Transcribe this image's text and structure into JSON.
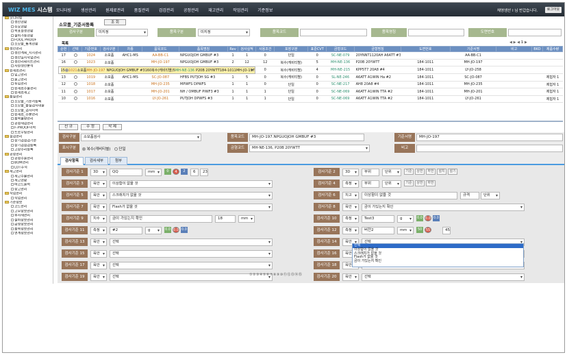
{
  "app": {
    "logo_main": "WIZ MES",
    "logo_sub": "시스템"
  },
  "menu": [
    "모니터링",
    "생산관리",
    "원제료관리",
    "품질관리",
    "검검관리",
    "공정관리",
    "재고관리",
    "작업관리",
    "기준정보"
  ],
  "user": {
    "info": "채영생산 I 님 반갑습니다.",
    "logout": "로그아웃"
  },
  "sidebar": [
    {
      "label": "모니터링",
      "level": 0
    },
    {
      "label": "생산현황",
      "level": 1
    },
    {
      "label": "주요현황",
      "level": 1
    },
    {
      "label": "목표월생현황",
      "level": 1
    },
    {
      "label": "설비가동현황",
      "level": 1
    },
    {
      "label": "FOOL PROOF",
      "level": 1
    },
    {
      "label": "소모품_통계현황",
      "level": 1
    },
    {
      "label": "생산관리",
      "level": 0
    },
    {
      "label": "생산계획_지시관리",
      "level": 1
    },
    {
      "label": "생산일지작업관리",
      "level": 1
    },
    {
      "label": "생산리테이트관리",
      "level": 1
    },
    {
      "label": "자원생산분석",
      "level": 1
    },
    {
      "label": "원재료관리",
      "level": 0
    },
    {
      "label": "입고관리",
      "level": 1
    },
    {
      "label": "출고관리",
      "level": 1
    },
    {
      "label": "투입관리",
      "level": 1
    },
    {
      "label": "원재료수불관리",
      "level": 1
    },
    {
      "label": "원재료재고",
      "level": 1
    },
    {
      "label": "품질관리",
      "level": 0
    },
    {
      "label": "소모품_기준서등록",
      "level": 1
    },
    {
      "label": "소모품_품질검사대출",
      "level": 1
    },
    {
      "label": "소모품_검사이력",
      "level": 1
    },
    {
      "label": "원재료_수분관리",
      "level": 1
    },
    {
      "label": "품목불량관리",
      "level": 1
    },
    {
      "label": "공정재검관리",
      "level": 1
    },
    {
      "label": "F-PROOF이력",
      "level": 1
    },
    {
      "label": "트로우팅관리",
      "level": 1
    },
    {
      "label": "점검관리",
      "level": 0
    },
    {
      "label": "장기검점검기준",
      "level": 1
    },
    {
      "label": "장기검점검등록",
      "level": 1
    },
    {
      "label": "고장수리등록",
      "level": 1
    },
    {
      "label": "공정관리",
      "level": 0
    },
    {
      "label": "공정수출관리",
      "level": 1
    },
    {
      "label": "BOM관리",
      "level": 1
    },
    {
      "label": "LOT추적",
      "level": 1
    },
    {
      "label": "재고관리",
      "level": 0
    },
    {
      "label": "재고수불관리",
      "level": 1
    },
    {
      "label": "재고현황",
      "level": 1
    },
    {
      "label": "바코드출력",
      "level": 1
    },
    {
      "label": "창고관리",
      "level": 1
    },
    {
      "label": "작업관리",
      "level": 0
    },
    {
      "label": "작업관리",
      "level": 1
    },
    {
      "label": "기준정보",
      "level": 0
    },
    {
      "label": "코드관리",
      "level": 1
    },
    {
      "label": "고무장보관리",
      "level": 1
    },
    {
      "label": "부자재관리",
      "level": 1
    },
    {
      "label": "설비장보관리",
      "level": 1
    },
    {
      "label": "금형장보관리",
      "level": 1
    },
    {
      "label": "품목정보관리",
      "level": 1
    },
    {
      "label": "연계정보관리",
      "level": 1
    }
  ],
  "page": {
    "title": "소모품_기준서등록",
    "query_button": "조 회"
  },
  "filters": {
    "inspect_type_label": "검사구분",
    "inspect_type_value": "미지정",
    "item_type_label": "품목구분",
    "item_type_value": "미지정",
    "item_code_label": "품목코드",
    "item_code_value": "",
    "item_name_label": "품목명칭",
    "item_name_value": "",
    "drawing_label": "도면번호",
    "drawing_value": ""
  },
  "grid": {
    "title": "목록",
    "nav": "◀ ▶ ◀ 1 ▶",
    "columns": [
      "순번",
      "선택",
      "기준번호",
      "검사구분",
      "차종",
      "품목코드",
      "품목명칭",
      "Rev",
      "검사실적",
      "사용조건",
      "포장구분",
      "표준CVT",
      "금형코드",
      "금형명칭",
      "도면번호",
      "기준서명",
      "비고",
      "BKO",
      "제품수량"
    ],
    "rows": [
      [
        "17",
        "",
        "1024",
        "소모품",
        "AHC1-MS",
        "AA-BB-C1",
        "NPGUOJOH GMBUF #3",
        "1",
        "1",
        "0",
        "단일",
        "0",
        "SC-NE-079",
        "20YNNT1120AH A6ATT #3",
        "",
        "AA-BB-C1",
        "",
        "",
        ""
      ],
      [
        "16",
        "",
        "1023",
        "소모품",
        "",
        "MH-JO-197",
        "NPGUOJOH GMBUF #3",
        "2",
        "12",
        "12",
        "복수(캐비티별)",
        "5",
        "MH-NE-136",
        "P20B 20YWTT",
        "184-1011",
        "MH-JO-197",
        "",
        "",
        ""
      ],
      [
        "15",
        "on",
        "1021",
        "소모품",
        "",
        "MH-JO-197",
        "NPGUOJOH GMBUF #3",
        "1",
        "6",
        "0",
        "복수(캐비티별)",
        "5",
        "MH-NE-136",
        "P20B 20YWTT",
        "184-1011",
        "MH-JO-197",
        "",
        "",
        ""
      ],
      [
        "14",
        "",
        "1020",
        "소모품",
        "",
        "LY-JO-258",
        "TUPGOF3(E)#4",
        "1",
        "1",
        "0",
        "복수(캐비티별)",
        "4",
        "MH-NE-215",
        "KPP5T7 20A8 #4",
        "184-1011",
        "LY-JO-258",
        "",
        "",
        ""
      ],
      [
        "13",
        "",
        "1019",
        "소모품",
        "AHC1-MS",
        "SC-JO-087",
        "HFBS PUTJOH SG #3",
        "1",
        "5",
        "0",
        "복수(캐비티별)",
        "0",
        "SL-NE-246",
        "A6ATT A1WIN Ha #2",
        "184-1011",
        "SC-JO-087",
        "",
        "",
        "제험자 1"
      ],
      [
        "12",
        "",
        "1018",
        "소모품",
        "",
        "MH-JO-235",
        "MPWFS DPWFS",
        "1",
        "1",
        "0",
        "단일",
        "0",
        "SC-NE-217",
        "AH8 20A8 #4",
        "184-1011",
        "MH-JO-235",
        "",
        "",
        "제험자 1"
      ],
      [
        "11",
        "",
        "1017",
        "소모품",
        "",
        "MH-JO-201",
        "NH / OMBUF PIWF3 #3",
        "1",
        "1",
        "1",
        "단일",
        "0",
        "SC-NE-069",
        "A6ATT A1WIN TTA #2",
        "184-1011",
        "MH-JO-201",
        "",
        "",
        "제험자 1"
      ],
      [
        "10",
        "",
        "1016",
        "소모품",
        "",
        "LY-JO-261",
        "PUTJOH DPWFS #3",
        "1",
        "1",
        "1",
        "단일",
        "0",
        "SC-NE-069",
        "A6ATT A1WIN TTA #2",
        "184-1011",
        "LY-JO-261",
        "",
        "",
        "제험자 1"
      ]
    ]
  },
  "actions": {
    "new": "신 규",
    "edit": "수 정",
    "delete": "삭 제"
  },
  "form": {
    "inspect_type_label": "검사구분",
    "inspect_type_value": "소모품검사",
    "item_code_label": "품목코드",
    "item_code_value": "MH-JO-197.NPGUOJOH GMBUF #3",
    "std_name_label": "기준서명",
    "std_name_value": "MH-JO-197",
    "display_label": "표시구분",
    "radio1": "복수(캐비티별)",
    "radio2": "단일",
    "mold_label": "금형코드",
    "mold_value": "MH-NE-136, P20B 20YWTT",
    "note_label": "비고",
    "note_value": ""
  },
  "tabs": [
    "검사항목",
    "검사세부",
    "첨부"
  ],
  "inspect_left": [
    {
      "label": "검사기준 1",
      "type": "3D",
      "text": "QQ",
      "unit": "mm",
      "chips": [
        [
          "gr",
          "0"
        ],
        [
          "rd",
          "4"
        ],
        [
          "bl",
          "2"
        ]
      ],
      "vals": [
        "6",
        "23"
      ]
    },
    {
      "label": "검사기준 3",
      "type": "육안",
      "text": "이상함이 없을 것"
    },
    {
      "label": "검사기준 5",
      "type": "육안",
      "text": "스크래치가 없을 것"
    },
    {
      "label": "검사기준 7",
      "type": "육안",
      "text": "Flash가 없을 것"
    },
    {
      "label": "검사기준 9",
      "type": "치수",
      "text": "금이 가있는지 확인",
      "value": "18",
      "unit": "mm"
    },
    {
      "label": "검사기준 11",
      "type": "측정",
      "text": "#2",
      "unit": "g",
      "chips": [
        [
          "gr",
          "0.0"
        ],
        [
          "rd",
          "0.0"
        ],
        [
          "bl",
          "0.0"
        ]
      ]
    },
    {
      "label": "검사기준 13",
      "type": "육안",
      "text": "선택"
    },
    {
      "label": "검사기준 15",
      "type": "육안",
      "text": "선택"
    },
    {
      "label": "검사기준 17",
      "type": "육안",
      "text": "선택"
    },
    {
      "label": "검사기준 19",
      "type": "육안",
      "text": "선택"
    }
  ],
  "inspect_right": [
    {
      "label": "검사기준 2",
      "type": "3D",
      "text": "부위",
      "mode": "단위",
      "btns": [
        "기준",
        "상한",
        "하한",
        "설치",
        "설기"
      ]
    },
    {
      "label": "검사기준 4",
      "type": "측정",
      "text": "부위",
      "mode": "단위",
      "btns": [
        "기준",
        "상한",
        "하한"
      ]
    },
    {
      "label": "검사기준 6",
      "type": "치고",
      "text": "이상함이 없을 것",
      "extra": "규격",
      "mode": "단위"
    },
    {
      "label": "검사기준 8",
      "type": "육안",
      "text": "금이 가있는지 확인"
    },
    {
      "label": "검사기준 10",
      "type": "측정",
      "text": "Test3",
      "unit": "g",
      "chips": [
        [
          "gr",
          "0.0"
        ],
        [
          "rd",
          "0.0"
        ],
        [
          "bl",
          "0.0"
        ]
      ]
    },
    {
      "label": "검사기준 12",
      "type": "측정",
      "text": "버전2",
      "unit": "mm",
      "chips": [
        [
          "gr",
          "50"
        ],
        [
          "rd",
          "55"
        ]
      ],
      "vals": [
        "45"
      ]
    },
    {
      "label": "검사기준 14",
      "type": "육안",
      "text": "선택"
    },
    {
      "label": "검사기준 16",
      "type": "육안",
      "text": "선택"
    },
    {
      "label": "검사기준 18",
      "type": "육안",
      "text": "선택"
    },
    {
      "label": "검사기준 20",
      "type": "육안",
      "text": "선택"
    }
  ],
  "dropdown": [
    "선택",
    "이상함이 없을 것",
    "스크래치가 없을 것",
    "Flash가 없을 것",
    "금이 가있는지 확인"
  ],
  "pager": "①②③④⑤⑥⑦⑧⑨⑩⑪⑫⑬⑭⑮"
}
